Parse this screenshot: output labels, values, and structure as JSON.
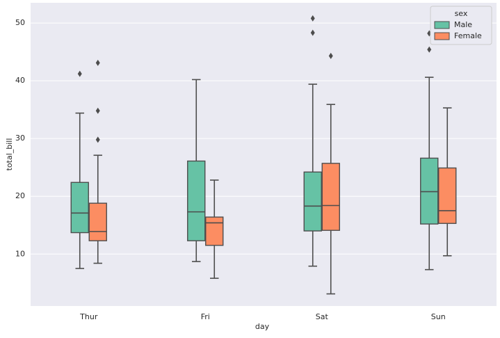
{
  "chart_data": {
    "type": "box",
    "xlabel": "day",
    "ylabel": "total_bill",
    "categories": [
      "Thur",
      "Fri",
      "Sat",
      "Sun"
    ],
    "ylim": [
      1,
      53.5
    ],
    "yticks": [
      10,
      20,
      30,
      40,
      50
    ],
    "grid": true,
    "legend_title": "sex",
    "legend_position": "upper right",
    "series": [
      {
        "name": "Male",
        "color": "#66c2a5",
        "data": [
          {
            "low": 7.5,
            "q1": 13.7,
            "median": 17.1,
            "q3": 22.4,
            "high": 34.4,
            "outliers": [
              41.2
            ]
          },
          {
            "low": 8.7,
            "q1": 12.3,
            "median": 17.3,
            "q3": 26.1,
            "high": 40.2,
            "outliers": []
          },
          {
            "low": 7.9,
            "q1": 14.0,
            "median": 18.3,
            "q3": 24.2,
            "high": 39.4,
            "outliers": [
              48.3,
              50.8
            ]
          },
          {
            "low": 7.3,
            "q1": 15.2,
            "median": 20.8,
            "q3": 26.6,
            "high": 40.6,
            "outliers": [
              45.4,
              48.2
            ]
          }
        ]
      },
      {
        "name": "Female",
        "color": "#fc8d62",
        "data": [
          {
            "low": 8.4,
            "q1": 12.3,
            "median": 13.9,
            "q3": 18.8,
            "high": 27.1,
            "outliers": [
              29.8,
              34.8,
              43.1
            ]
          },
          {
            "low": 5.8,
            "q1": 11.5,
            "median": 15.4,
            "q3": 16.4,
            "high": 22.8,
            "outliers": []
          },
          {
            "low": 3.1,
            "q1": 14.1,
            "median": 18.4,
            "q3": 25.7,
            "high": 35.9,
            "outliers": [
              44.3
            ]
          },
          {
            "low": 9.7,
            "q1": 15.3,
            "median": 17.5,
            "q3": 24.9,
            "high": 35.3,
            "outliers": []
          }
        ]
      }
    ]
  }
}
